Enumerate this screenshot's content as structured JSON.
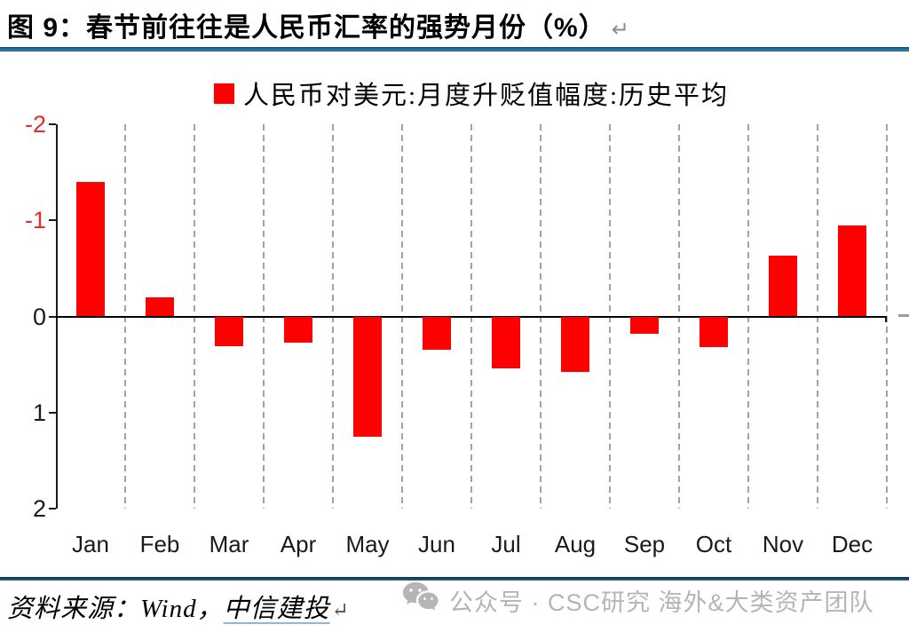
{
  "title": {
    "text": "图 9：春节前往往是人民币汇率的强势月份（%）",
    "return_mark": "↵"
  },
  "legend": {
    "label": "人民币对美元:月度升贬值幅度:历史平均",
    "swatch_color": "#fe0000"
  },
  "chart_data": {
    "type": "bar",
    "title": "春节前往往是人民币汇率的强势月份（%）",
    "series_name": "人民币对美元:月度升贬值幅度:历史平均",
    "categories": [
      "Jan",
      "Feb",
      "Mar",
      "Apr",
      "May",
      "Jun",
      "Jul",
      "Aug",
      "Sep",
      "Oct",
      "Nov",
      "Dec"
    ],
    "values": [
      -1.4,
      -0.2,
      0.31,
      0.27,
      1.25,
      0.35,
      0.54,
      0.58,
      0.18,
      0.32,
      -0.63,
      -0.95
    ],
    "xlabel": "",
    "ylabel": "",
    "ylim": [
      -2,
      2
    ],
    "y_axis_reversed": true,
    "y_ticks": [
      -2,
      -1,
      0,
      1,
      2
    ],
    "grid": "vertical-dashed",
    "legend_position": "top-center",
    "bar_color": "#fe0000",
    "negative_tick_color": "#ee2a22",
    "positive_tick_color": "#1a1a1a"
  },
  "footer": {
    "source_prefix": "资料来源：Wind，",
    "source_link": "中信建投",
    "return_mark": "↵"
  },
  "watermark": {
    "icon": "wechat-icon",
    "text": "公众号 · CSC研究 海外&大类资产团队",
    "color": "#b5b5b5"
  }
}
